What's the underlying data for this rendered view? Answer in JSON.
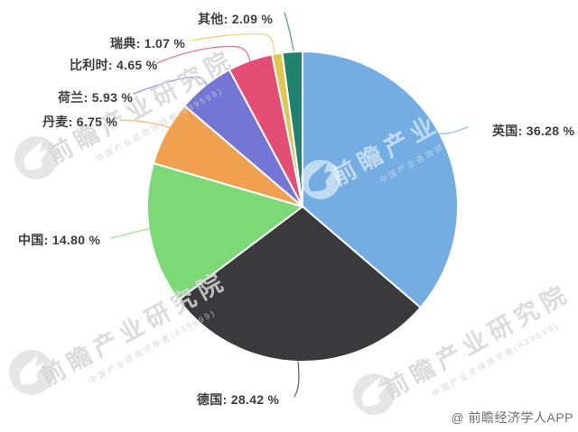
{
  "chart_data": {
    "type": "pie",
    "title": "",
    "unit": "%",
    "legend_position": "none",
    "label_format": "name: value %",
    "series": [
      {
        "name": "英国",
        "value": 36.28,
        "label": "英国: 36.28 %",
        "color": "#74ade2"
      },
      {
        "name": "德国",
        "value": 28.42,
        "label": "德国: 28.42 %",
        "color": "#3a3a3c"
      },
      {
        "name": "中国",
        "value": 14.8,
        "label": "中国: 14.80 %",
        "color": "#7cd976"
      },
      {
        "name": "丹麦",
        "value": 6.75,
        "label": "丹麦: 6.75 %",
        "color": "#f0a04e"
      },
      {
        "name": "荷兰",
        "value": 5.93,
        "label": "荷兰: 5.93 %",
        "color": "#7376d4"
      },
      {
        "name": "比利时",
        "value": 4.65,
        "label": "比利时: 4.65 %",
        "color": "#e44d74"
      },
      {
        "name": "瑞典",
        "value": 1.07,
        "label": "瑞典: 1.07 %",
        "color": "#ddc94f"
      },
      {
        "name": "其他",
        "value": 2.09,
        "label": "其他: 2.09 %",
        "color": "#20816f"
      }
    ]
  },
  "watermark": {
    "brand_text": "前瞻产业研究院",
    "sub_text": "中国产业咨询领导者(839599)",
    "credit": "@ 前瞻经济学人APP"
  }
}
